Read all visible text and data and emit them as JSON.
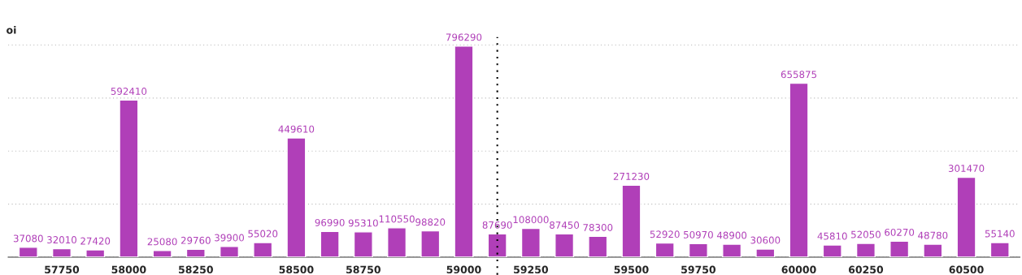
{
  "chart_data": {
    "type": "bar",
    "ylabel": "oi",
    "categories": [
      null,
      "57750",
      null,
      "58000",
      null,
      "58250",
      null,
      null,
      "58500",
      null,
      "58750",
      null,
      null,
      "59000",
      null,
      "59250",
      null,
      null,
      "59500",
      null,
      "59750",
      null,
      null,
      "60000",
      null,
      "60250",
      null,
      null,
      "60500",
      null
    ],
    "values": [
      37080,
      32010,
      27420,
      592410,
      25080,
      29760,
      39900,
      55020,
      449610,
      96990,
      95310,
      110550,
      98820,
      796290,
      87690,
      108000,
      87450,
      78300,
      271230,
      52920,
      50970,
      48900,
      30600,
      655875,
      45810,
      52050,
      60270,
      48780,
      301470,
      55140
    ],
    "color": "#b03fb8",
    "ylim": [
      0,
      830000
    ],
    "yticks": [
      {
        "value": 0,
        "label": null
      },
      {
        "value": 200000,
        "label": null
      },
      {
        "value": 400000,
        "label": null
      },
      {
        "value": 600000,
        "label": null
      },
      {
        "value": 800000,
        "label": null
      }
    ],
    "grid": "y",
    "tick_labels": "x",
    "data_labels": true
  }
}
